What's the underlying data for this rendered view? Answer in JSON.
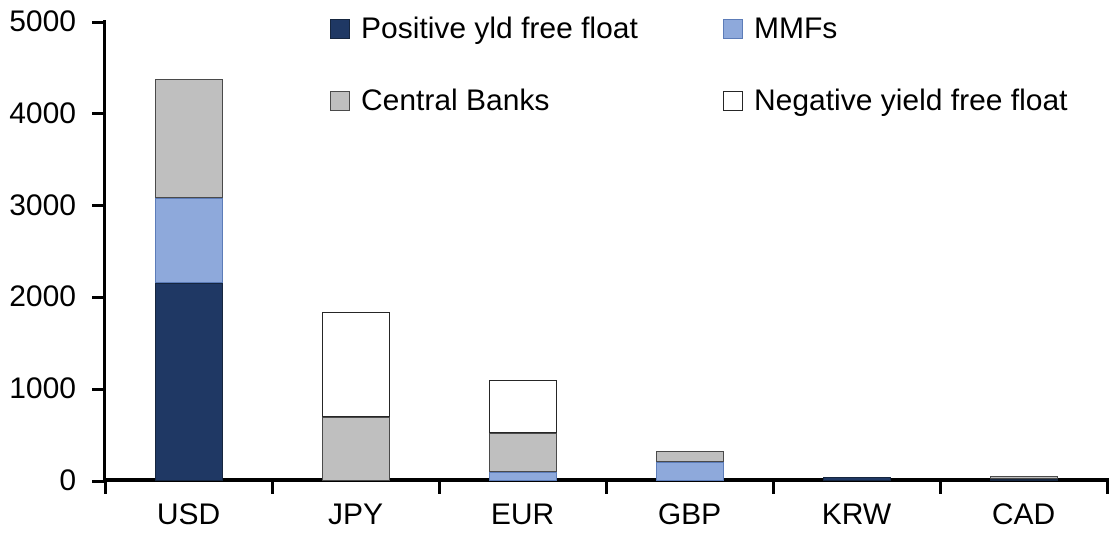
{
  "chart_data": {
    "type": "bar",
    "subtype": "stacked-vertical",
    "title": "",
    "xlabel": "",
    "ylabel": "",
    "categories": [
      "USD",
      "JPY",
      "EUR",
      "GBP",
      "KRW",
      "CAD"
    ],
    "series": [
      {
        "name": "Positive yld free float",
        "color": "#1F3864",
        "border": "#16263F",
        "values": [
          2160,
          0,
          0,
          0,
          45,
          25
        ]
      },
      {
        "name": "MMFs",
        "color": "#8EA9DB",
        "border": "#5C7CB8",
        "values": [
          930,
          0,
          100,
          210,
          0,
          0
        ]
      },
      {
        "name": "Central Banks",
        "color": "#BFBFBF",
        "border": "#4A4A4A",
        "values": [
          1300,
          700,
          430,
          120,
          0,
          35
        ]
      },
      {
        "name": "Negative yield free float",
        "color": "#FFFFFF",
        "border": "#262626",
        "values": [
          0,
          1140,
          580,
          0,
          0,
          0
        ]
      }
    ],
    "totals": [
      4390,
      1840,
      1110,
      330,
      45,
      60
    ],
    "ylim": [
      0,
      5000
    ],
    "yticks": [
      0,
      1000,
      2000,
      3000,
      4000,
      5000
    ],
    "grid": false,
    "legend_position": "top-inside",
    "legend_rows": [
      [
        "Positive yld free float",
        "MMFs"
      ],
      [
        "Central Banks",
        "Negative yield free float"
      ]
    ],
    "axis_color": "#000000",
    "background_color": "#FFFFFF"
  }
}
